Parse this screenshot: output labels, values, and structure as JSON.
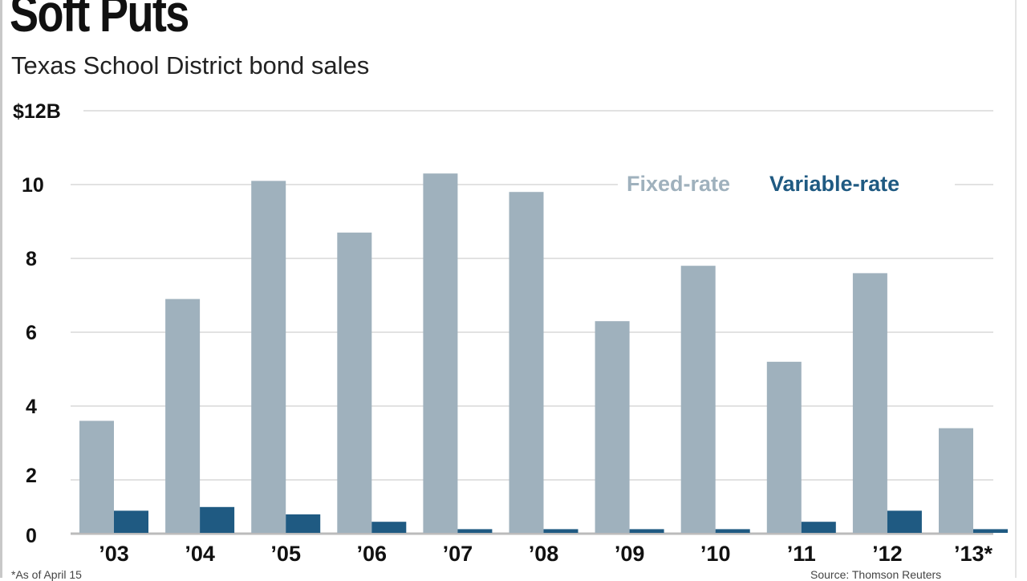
{
  "chart_data": {
    "type": "bar",
    "title": "Soft Puts",
    "subtitle": "Texas School District bond sales",
    "ylabel": "",
    "xlabel": "",
    "ylim": [
      0,
      12
    ],
    "yticks": [
      {
        "value": 0,
        "label": "0"
      },
      {
        "value": 2,
        "label": "2"
      },
      {
        "value": 4,
        "label": "4"
      },
      {
        "value": 6,
        "label": "6"
      },
      {
        "value": 8,
        "label": "8"
      },
      {
        "value": 10,
        "label": "10"
      },
      {
        "value": 12,
        "label": "$12B"
      }
    ],
    "grid": true,
    "legend_position": "top-right",
    "categories": [
      "’03",
      "’04",
      "’05",
      "’06",
      "’07",
      "’08",
      "’09",
      "’10",
      "’11",
      "’12",
      "’13*"
    ],
    "series": [
      {
        "name": "Fixed-rate",
        "color": "#9fb1bd",
        "values": [
          3.6,
          6.9,
          10.1,
          8.7,
          10.3,
          9.8,
          6.3,
          7.8,
          5.2,
          7.6,
          3.4
        ]
      },
      {
        "name": "Variable-rate",
        "color": "#1f5a82",
        "values": [
          0.6,
          0.7,
          0.5,
          0.3,
          0.1,
          0.1,
          0.1,
          0.1,
          0.3,
          0.6,
          0.1
        ]
      }
    ]
  },
  "footnote": "*As of April 15",
  "source": "Source: Thomson Reuters"
}
